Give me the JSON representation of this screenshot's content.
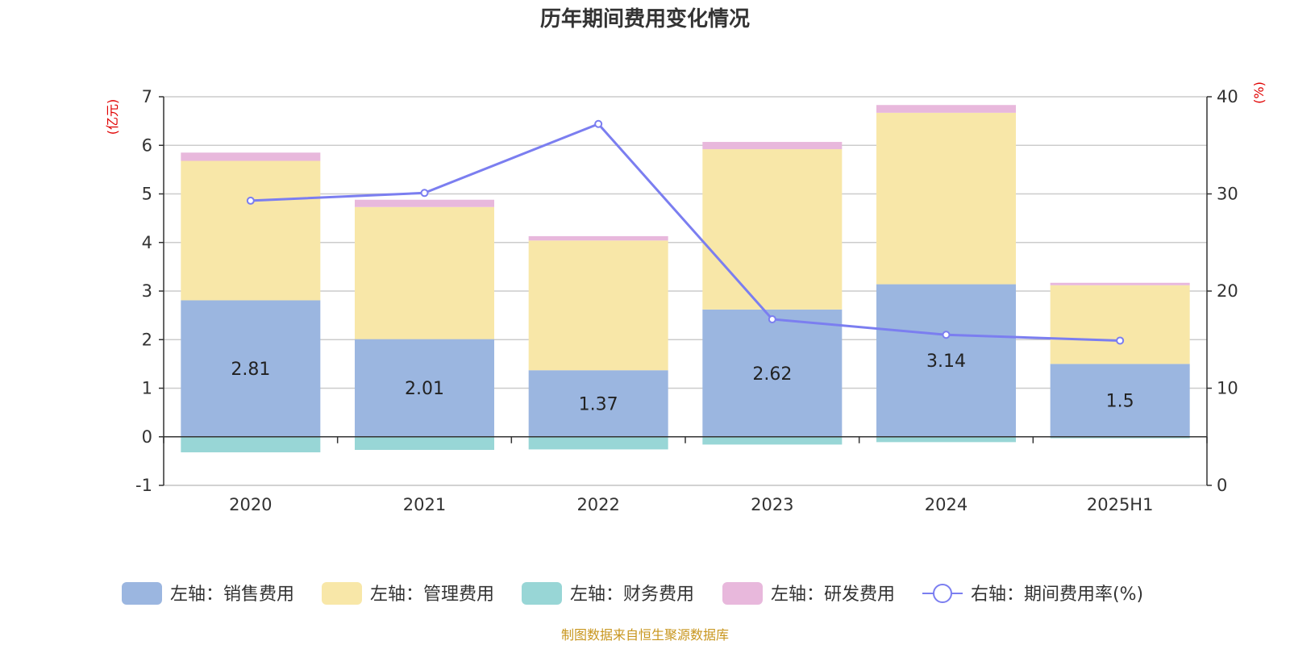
{
  "chart_data": {
    "type": "bar",
    "title": "历年期间费用变化情况",
    "left_axis_unit": "(亿元)",
    "right_axis_unit": "(%)",
    "categories": [
      "2020",
      "2021",
      "2022",
      "2023",
      "2024",
      "2025H1"
    ],
    "ylim_left": [
      -1,
      7
    ],
    "yticks_left": [
      "-1",
      "0",
      "1",
      "2",
      "3",
      "4",
      "5",
      "6",
      "7"
    ],
    "ylim_right": [
      0,
      40
    ],
    "yticks_right": [
      "0",
      "10",
      "20",
      "30",
      "40"
    ],
    "grid": true,
    "legend_position": "bottom",
    "series": [
      {
        "name": "左轴：销售费用",
        "kind": "bar",
        "axis": "left",
        "color": "#9bb6e0",
        "values": [
          2.81,
          2.01,
          1.37,
          2.62,
          3.14,
          1.5
        ],
        "labels": [
          "2.81",
          "2.01",
          "1.37",
          "2.62",
          "3.14",
          "1.5"
        ]
      },
      {
        "name": "左轴：管理费用",
        "kind": "bar",
        "axis": "left",
        "color": "#f8e7a8",
        "values": [
          2.87,
          2.72,
          2.67,
          3.3,
          3.53,
          1.62
        ]
      },
      {
        "name": "左轴：财务费用",
        "kind": "bar",
        "axis": "left",
        "color": "#98d6d6",
        "values": [
          -0.32,
          -0.27,
          -0.26,
          -0.16,
          -0.11,
          -0.03
        ]
      },
      {
        "name": "左轴：研发费用",
        "kind": "bar",
        "axis": "left",
        "color": "#e8b8dc",
        "values": [
          0.17,
          0.15,
          0.09,
          0.15,
          0.16,
          0.05
        ]
      },
      {
        "name": "右轴：期间费用率(%)",
        "kind": "line",
        "axis": "right",
        "color": "#7b7ef0",
        "values": [
          29.3,
          30.1,
          37.2,
          17.1,
          15.5,
          14.9
        ]
      }
    ]
  },
  "source_note": "制图数据来自恒生聚源数据库",
  "colors": {
    "axis_unit": "#e00000",
    "source": "#c8961e",
    "grid": "#cccccc",
    "axis": "#333333"
  }
}
